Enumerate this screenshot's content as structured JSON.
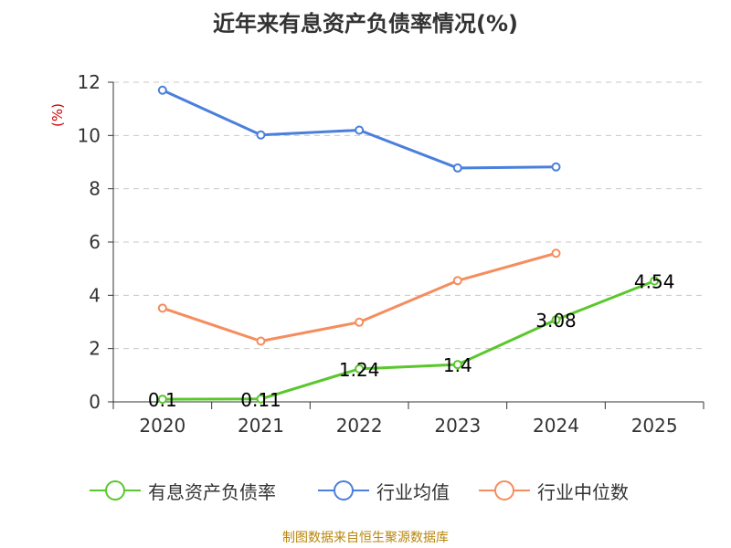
{
  "title": "近年来有息资产负债率情况(%)",
  "source": "制图数据来自恒生聚源数据库",
  "chart_data": {
    "type": "line",
    "title": "近年来有息资产负债率情况(%)",
    "xlabel": "",
    "ylabel": "(%)",
    "categories": [
      "2020",
      "2021",
      "2022",
      "2023",
      "2024",
      "2025"
    ],
    "ylim": [
      0,
      12
    ],
    "yticks": [
      0,
      2,
      4,
      6,
      8,
      10,
      12
    ],
    "grid": "horizontal dashed",
    "legend_position": "bottom",
    "series": [
      {
        "name": "有息资产负债率",
        "color": "#5ac72c",
        "values": [
          0.1,
          0.11,
          1.24,
          1.4,
          3.08,
          4.54
        ],
        "labels": [
          "0.1",
          "0.11",
          "1.24",
          "1.4",
          "3.08",
          "4.54"
        ]
      },
      {
        "name": "行业均值",
        "color": "#4a7fdc",
        "values": [
          11.7,
          10.02,
          10.2,
          8.78,
          8.82,
          null
        ]
      },
      {
        "name": "行业中位数",
        "color": "#f58d5e",
        "values": [
          3.52,
          2.28,
          2.99,
          4.55,
          5.58,
          null
        ]
      }
    ]
  }
}
